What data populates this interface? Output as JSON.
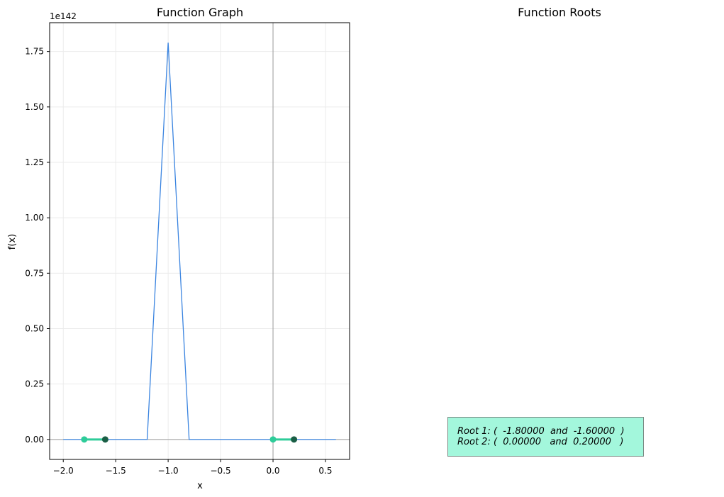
{
  "chart_data": {
    "type": "line",
    "title": "Function Graph",
    "xlabel": "x",
    "ylabel": "f(x)",
    "y_offset_label": "1e142",
    "xlim": [
      -2.13,
      0.73
    ],
    "ylim": [
      -0.09,
      1.88
    ],
    "x_ticks": [
      -2.0,
      -1.5,
      -1.0,
      -0.5,
      0.0,
      0.5
    ],
    "x_tick_labels": [
      "−2.0",
      "−1.5",
      "−1.0",
      "−0.5",
      "0.0",
      "0.5"
    ],
    "y_ticks": [
      0.0,
      0.25,
      0.5,
      0.75,
      1.0,
      1.25,
      1.5,
      1.75
    ],
    "y_tick_labels": [
      "0.00",
      "0.25",
      "0.50",
      "0.75",
      "1.00",
      "1.25",
      "1.50",
      "1.75"
    ],
    "grid": true,
    "series": [
      {
        "color": "#3a84e0",
        "x": [
          -2.0,
          -1.8,
          -1.6,
          -1.4,
          -1.2,
          -1.0,
          -0.8,
          -0.6,
          -0.4,
          -0.2,
          0.0,
          0.2,
          0.4,
          0.6
        ],
        "y": [
          0,
          0,
          0,
          0,
          0,
          1.79,
          0,
          0,
          0,
          0,
          0,
          0,
          0,
          0
        ]
      }
    ],
    "root_intervals": [
      {
        "x": [
          -1.8,
          -1.6
        ],
        "start_color": "#2ecc99",
        "end_color": "#1a5e45"
      },
      {
        "x": [
          0.0,
          0.2
        ],
        "start_color": "#2ecc99",
        "end_color": "#1a5e45"
      }
    ],
    "interval_line_color": "#2ecc99"
  },
  "roots_panel": {
    "title": "Function Roots",
    "box_color": "#a3f7dc",
    "lines": [
      "Root 1: (  -1.80000  and  -1.60000  )",
      "Root 2: (  0.00000   and  0.20000   )"
    ]
  }
}
